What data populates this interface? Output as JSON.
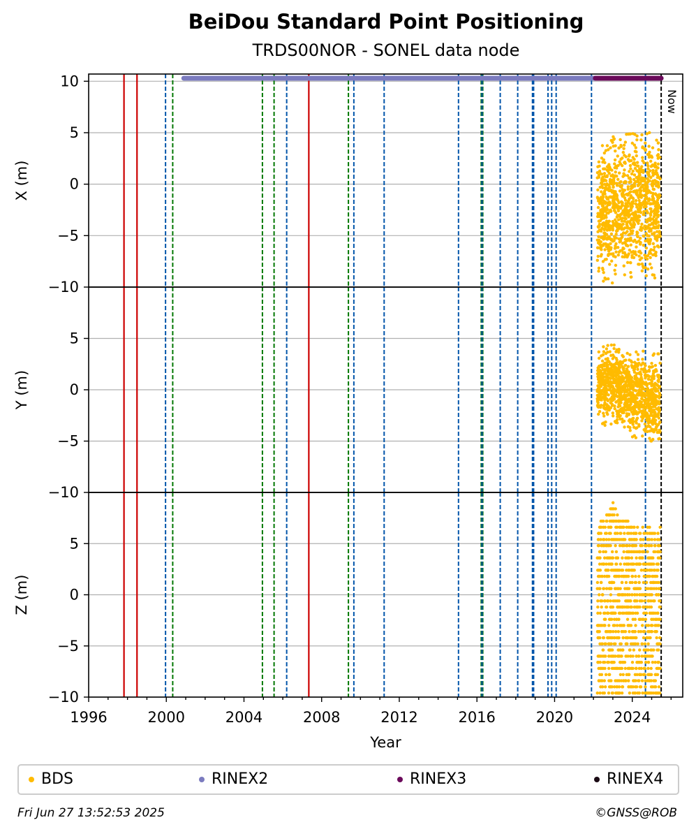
{
  "chart_data": {
    "type": "scatter",
    "title": "BeiDou Standard Point Positioning",
    "subtitle": "TRDS00NOR - SONEL data node",
    "xlabel": "Year",
    "xlim": [
      1996.0,
      2026.6
    ],
    "x_ticks": [
      1996,
      2000,
      2004,
      2008,
      2012,
      2016,
      2020,
      2024
    ],
    "x_tick_labels": [
      "1996",
      "2000",
      "2004",
      "2008",
      "2012",
      "2016",
      "2020",
      "2024"
    ],
    "now_label": "Now",
    "now_year": 2025.49,
    "panels": [
      {
        "key": "X",
        "ylabel": "X (m)",
        "ylim": [
          -10,
          10.7
        ],
        "yticks": [
          -10,
          -5,
          0,
          5,
          10
        ],
        "ytick_labels": [
          "−10",
          "−5",
          "0",
          "5",
          "10"
        ]
      },
      {
        "key": "Y",
        "ylabel": "Y (m)",
        "ylim": [
          -10,
          10
        ],
        "yticks": [
          -10,
          -5,
          0,
          5
        ],
        "ytick_labels": [
          "−10",
          "−5",
          "0",
          "5"
        ]
      },
      {
        "key": "Z",
        "ylabel": "Z (m)",
        "ylim": [
          -10,
          10
        ],
        "yticks": [
          -10,
          -5,
          0,
          5
        ],
        "ytick_labels": [
          "−10",
          "−5",
          "0",
          "5"
        ]
      }
    ],
    "event_lines": {
      "red_solid": [
        1997.82,
        1998.49,
        2007.34
      ],
      "green_dashed": [
        2000.33,
        2004.95,
        2005.55,
        2009.38,
        2016.22,
        2016.3
      ],
      "blue_dashed": [
        1999.96,
        2006.2,
        2009.66,
        2011.22,
        2015.05,
        2016.26,
        2017.2,
        2018.1,
        2018.86,
        2018.92,
        2019.66,
        2019.85,
        2020.08,
        2021.9,
        2024.68
      ]
    },
    "data_availability": [
      {
        "series": "RINEX2",
        "start": 2000.9,
        "end": 2022.1
      },
      {
        "series": "RINEX3",
        "start": 2022.1,
        "end": 2025.49
      }
    ],
    "bds_envelope": {
      "X": [
        {
          "x": 2022.2,
          "low": -9.0,
          "high": 3.5
        },
        {
          "x": 2022.5,
          "low": -9.6,
          "high": 4.0
        },
        {
          "x": 2023.0,
          "low": -9.6,
          "high": 4.6
        },
        {
          "x": 2023.5,
          "low": -9.2,
          "high": 4.8
        },
        {
          "x": 2024.0,
          "low": -9.0,
          "high": 4.9
        },
        {
          "x": 2024.5,
          "low": -8.5,
          "high": 5.0
        },
        {
          "x": 2025.0,
          "low": -9.4,
          "high": 5.0
        },
        {
          "x": 2025.45,
          "low": -9.0,
          "high": 5.3
        }
      ],
      "Y": [
        {
          "x": 2022.2,
          "low": -3.0,
          "high": 3.5
        },
        {
          "x": 2022.5,
          "low": -3.5,
          "high": 4.2
        },
        {
          "x": 2023.0,
          "low": -3.3,
          "high": 4.7
        },
        {
          "x": 2023.5,
          "low": -3.8,
          "high": 3.5
        },
        {
          "x": 2024.0,
          "low": -4.6,
          "high": 3.6
        },
        {
          "x": 2024.5,
          "low": -4.8,
          "high": 3.8
        },
        {
          "x": 2025.0,
          "low": -5.0,
          "high": 3.5
        },
        {
          "x": 2025.45,
          "low": -6.0,
          "high": 3.5
        }
      ],
      "Z": [
        {
          "x": 2022.2,
          "low": -9.8,
          "high": 7.3
        },
        {
          "x": 2022.5,
          "low": -9.8,
          "high": 7.5
        },
        {
          "x": 2023.0,
          "low": -9.8,
          "high": 9.1
        },
        {
          "x": 2023.5,
          "low": -9.8,
          "high": 7.5
        },
        {
          "x": 2024.0,
          "low": -9.8,
          "high": 7.2
        },
        {
          "x": 2024.5,
          "low": -9.8,
          "high": 6.8
        },
        {
          "x": 2025.0,
          "low": -9.8,
          "high": 6.8
        },
        {
          "x": 2025.45,
          "low": -9.8,
          "high": 6.8
        }
      ]
    },
    "series": [
      {
        "name": "BDS",
        "color": "#ffbb00"
      },
      {
        "name": "RINEX2",
        "color": "#7b7bbf"
      },
      {
        "name": "RINEX3",
        "color": "#6b0a5b"
      },
      {
        "name": "RINEX4",
        "color": "#1a0a14"
      }
    ],
    "colors": {
      "red_solid": "#cc0000",
      "green_dashed": "#007700",
      "blue_dashed": "#0055aa",
      "grid": "#b0b0b0",
      "now_line": "#000000"
    },
    "grid": true,
    "legend_position": "bottom"
  },
  "footer": {
    "timestamp": "Fri Jun 27 13:52:53 2025",
    "copyright": "©GNSS@ROB"
  }
}
